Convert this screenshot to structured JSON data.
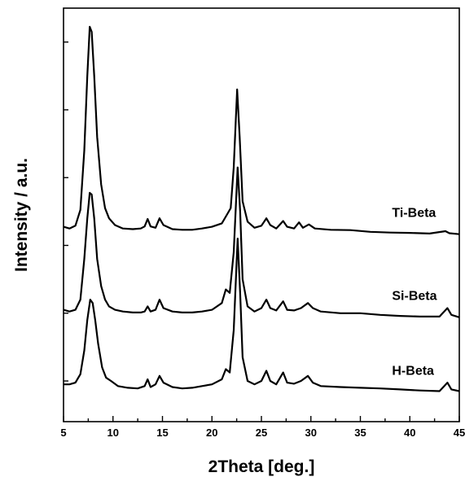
{
  "chart_data": {
    "type": "line",
    "title": "",
    "xlabel": "2Theta [deg.]",
    "ylabel": "Intensity / a.u.",
    "xlim": [
      5,
      45
    ],
    "x_ticks": [
      5,
      10,
      15,
      20,
      25,
      30,
      35,
      40,
      45
    ],
    "y_tick_labels": false,
    "grid": false,
    "series": [
      {
        "name": "Ti-Beta",
        "points": [
          [
            5.0,
            0.155
          ],
          [
            5.6,
            0.15
          ],
          [
            6.2,
            0.158
          ],
          [
            6.7,
            0.205
          ],
          [
            7.1,
            0.38
          ],
          [
            7.4,
            0.6
          ],
          [
            7.65,
            0.745
          ],
          [
            7.85,
            0.73
          ],
          [
            8.1,
            0.6
          ],
          [
            8.4,
            0.42
          ],
          [
            8.8,
            0.28
          ],
          [
            9.2,
            0.21
          ],
          [
            9.6,
            0.18
          ],
          [
            10.2,
            0.16
          ],
          [
            11.0,
            0.15
          ],
          [
            12.0,
            0.148
          ],
          [
            12.8,
            0.15
          ],
          [
            13.2,
            0.156
          ],
          [
            13.5,
            0.178
          ],
          [
            13.8,
            0.156
          ],
          [
            14.3,
            0.152
          ],
          [
            14.7,
            0.18
          ],
          [
            15.1,
            0.16
          ],
          [
            16.0,
            0.148
          ],
          [
            17.0,
            0.146
          ],
          [
            18.0,
            0.146
          ],
          [
            19.0,
            0.15
          ],
          [
            20.0,
            0.155
          ],
          [
            21.0,
            0.165
          ],
          [
            21.5,
            0.19
          ],
          [
            21.9,
            0.21
          ],
          [
            22.2,
            0.33
          ],
          [
            22.55,
            0.56
          ],
          [
            22.8,
            0.42
          ],
          [
            23.1,
            0.23
          ],
          [
            23.6,
            0.17
          ],
          [
            24.3,
            0.152
          ],
          [
            25.0,
            0.158
          ],
          [
            25.5,
            0.18
          ],
          [
            25.9,
            0.16
          ],
          [
            26.5,
            0.15
          ],
          [
            27.2,
            0.172
          ],
          [
            27.6,
            0.155
          ],
          [
            28.3,
            0.15
          ],
          [
            28.8,
            0.168
          ],
          [
            29.2,
            0.152
          ],
          [
            29.8,
            0.162
          ],
          [
            30.4,
            0.15
          ],
          [
            32.0,
            0.146
          ],
          [
            34.0,
            0.145
          ],
          [
            36.0,
            0.14
          ],
          [
            38.0,
            0.138
          ],
          [
            40.0,
            0.137
          ],
          [
            42.0,
            0.135
          ],
          [
            43.6,
            0.142
          ],
          [
            44.0,
            0.136
          ],
          [
            45.0,
            0.133
          ]
        ],
        "label_x": 30.6
      },
      {
        "name": "Si-Beta",
        "points": [
          [
            5.0,
            -0.09
          ],
          [
            5.6,
            -0.095
          ],
          [
            6.2,
            -0.09
          ],
          [
            6.7,
            -0.06
          ],
          [
            7.1,
            0.06
          ],
          [
            7.4,
            0.18
          ],
          [
            7.65,
            0.255
          ],
          [
            7.85,
            0.25
          ],
          [
            8.1,
            0.18
          ],
          [
            8.4,
            0.06
          ],
          [
            8.8,
            -0.02
          ],
          [
            9.2,
            -0.06
          ],
          [
            9.6,
            -0.08
          ],
          [
            10.2,
            -0.09
          ],
          [
            11.0,
            -0.095
          ],
          [
            12.0,
            -0.098
          ],
          [
            12.8,
            -0.098
          ],
          [
            13.2,
            -0.095
          ],
          [
            13.5,
            -0.08
          ],
          [
            13.8,
            -0.095
          ],
          [
            14.3,
            -0.09
          ],
          [
            14.7,
            -0.06
          ],
          [
            15.1,
            -0.085
          ],
          [
            16.0,
            -0.095
          ],
          [
            17.0,
            -0.098
          ],
          [
            18.0,
            -0.098
          ],
          [
            19.0,
            -0.095
          ],
          [
            20.0,
            -0.09
          ],
          [
            21.0,
            -0.07
          ],
          [
            21.4,
            -0.03
          ],
          [
            21.8,
            -0.04
          ],
          [
            22.2,
            0.08
          ],
          [
            22.6,
            0.33
          ],
          [
            22.85,
            0.2
          ],
          [
            23.1,
            0.0
          ],
          [
            23.6,
            -0.08
          ],
          [
            24.3,
            -0.095
          ],
          [
            25.0,
            -0.085
          ],
          [
            25.5,
            -0.06
          ],
          [
            25.9,
            -0.085
          ],
          [
            26.5,
            -0.092
          ],
          [
            27.2,
            -0.065
          ],
          [
            27.6,
            -0.09
          ],
          [
            28.3,
            -0.092
          ],
          [
            29.0,
            -0.085
          ],
          [
            29.7,
            -0.07
          ],
          [
            30.2,
            -0.085
          ],
          [
            31.0,
            -0.095
          ],
          [
            33.0,
            -0.1
          ],
          [
            35.0,
            -0.1
          ],
          [
            37.0,
            -0.105
          ],
          [
            39.0,
            -0.108
          ],
          [
            41.0,
            -0.11
          ],
          [
            43.0,
            -0.11
          ],
          [
            43.8,
            -0.085
          ],
          [
            44.2,
            -0.105
          ],
          [
            45.0,
            -0.112
          ]
        ],
        "label_x": 30.6
      },
      {
        "name": "H-Beta",
        "points": [
          [
            5.0,
            -0.31
          ],
          [
            5.6,
            -0.31
          ],
          [
            6.2,
            -0.305
          ],
          [
            6.7,
            -0.28
          ],
          [
            7.1,
            -0.21
          ],
          [
            7.4,
            -0.12
          ],
          [
            7.7,
            -0.06
          ],
          [
            7.95,
            -0.07
          ],
          [
            8.2,
            -0.12
          ],
          [
            8.5,
            -0.19
          ],
          [
            8.9,
            -0.26
          ],
          [
            9.3,
            -0.29
          ],
          [
            9.8,
            -0.3
          ],
          [
            10.5,
            -0.315
          ],
          [
            11.5,
            -0.32
          ],
          [
            12.5,
            -0.322
          ],
          [
            13.2,
            -0.315
          ],
          [
            13.5,
            -0.295
          ],
          [
            13.8,
            -0.318
          ],
          [
            14.3,
            -0.31
          ],
          [
            14.7,
            -0.285
          ],
          [
            15.1,
            -0.305
          ],
          [
            16.0,
            -0.318
          ],
          [
            17.0,
            -0.322
          ],
          [
            18.0,
            -0.32
          ],
          [
            19.0,
            -0.315
          ],
          [
            20.0,
            -0.31
          ],
          [
            21.0,
            -0.295
          ],
          [
            21.4,
            -0.265
          ],
          [
            21.8,
            -0.275
          ],
          [
            22.2,
            -0.15
          ],
          [
            22.6,
            0.12
          ],
          [
            22.85,
            -0.04
          ],
          [
            23.1,
            -0.23
          ],
          [
            23.6,
            -0.3
          ],
          [
            24.3,
            -0.31
          ],
          [
            25.0,
            -0.3
          ],
          [
            25.5,
            -0.27
          ],
          [
            25.9,
            -0.3
          ],
          [
            26.5,
            -0.31
          ],
          [
            27.2,
            -0.275
          ],
          [
            27.6,
            -0.305
          ],
          [
            28.3,
            -0.308
          ],
          [
            29.0,
            -0.3
          ],
          [
            29.7,
            -0.285
          ],
          [
            30.2,
            -0.305
          ],
          [
            31.0,
            -0.315
          ],
          [
            33.0,
            -0.318
          ],
          [
            35.0,
            -0.32
          ],
          [
            37.0,
            -0.322
          ],
          [
            39.0,
            -0.325
          ],
          [
            41.0,
            -0.328
          ],
          [
            43.0,
            -0.33
          ],
          [
            43.8,
            -0.305
          ],
          [
            44.2,
            -0.325
          ],
          [
            45.0,
            -0.33
          ]
        ],
        "label_x": 30.6
      }
    ]
  }
}
